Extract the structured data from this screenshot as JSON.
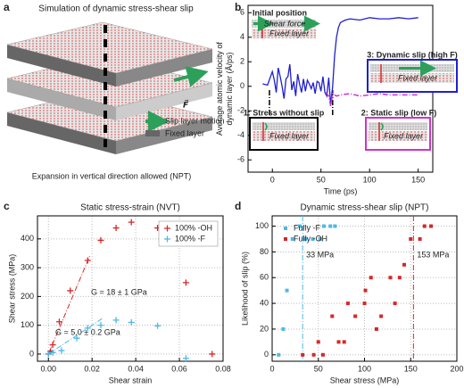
{
  "panel_a": {
    "label": "a",
    "title": "Simulation of dynamic stress-shear slip",
    "force": "F⃗",
    "legend": [
      "Slip layer motion",
      "Fixed layer"
    ],
    "caption": "Expansion in vertical direction allowed (NPT)"
  },
  "chart_data": [
    {
      "type": "line",
      "panel_label": "b",
      "xlabel": "Time (ps)",
      "ylabel": [
        "Average atomic velocity of",
        "dynamic layer (Å/ps)"
      ],
      "xlim": [
        -25,
        165
      ],
      "xticks": [
        0,
        50,
        100,
        150
      ],
      "ylim": [
        -7,
        6.6
      ],
      "yticks": [
        -6,
        -4,
        -2,
        0,
        2,
        4,
        6
      ],
      "grid": false,
      "series": [
        {
          "color": "#1f1fd0",
          "style": "solid",
          "x": [
            -10,
            -5,
            0,
            2,
            4,
            6,
            8,
            10,
            12,
            14,
            16,
            18,
            20,
            22,
            24,
            26,
            28,
            30,
            32,
            34,
            36,
            38,
            40,
            42,
            44,
            46,
            48,
            50,
            52,
            54,
            56,
            58,
            60,
            62,
            64,
            66,
            68,
            70,
            75,
            80,
            90,
            100,
            110,
            120,
            130,
            140,
            150
          ],
          "values": [
            0.2,
            0.1,
            1.2,
            0.5,
            -0.5,
            1.5,
            0.8,
            0,
            -1,
            0.6,
            0.8,
            1.8,
            -0.3,
            0.4,
            -0.8,
            1.0,
            0.2,
            -0.5,
            0.6,
            -0.4,
            0.5,
            0.2,
            -0.2,
            0.3,
            -0.6,
            0.4,
            0.3,
            -0.4,
            0.8,
            -0.5,
            -0.8,
            0.7,
            -1.5,
            0,
            2.5,
            4.0,
            4.8,
            5.2,
            5.4,
            5.5,
            5.4,
            5.6,
            5.5,
            5.5,
            5.6,
            5.5,
            5.6
          ]
        },
        {
          "color": "#cc33cc",
          "style": "dashdot",
          "x": [
            55,
            58,
            60,
            62,
            64,
            66,
            70,
            80,
            90,
            100,
            110,
            120,
            130,
            140,
            150
          ],
          "values": [
            -0.5,
            -0.8,
            -1.6,
            -0.6,
            -0.7,
            -0.8,
            -0.7,
            -0.6,
            -0.8,
            -0.7,
            -0.6,
            -0.7,
            -0.7,
            -0.7,
            -0.7
          ]
        }
      ],
      "vlines": [
        {
          "value": -3,
          "color": "#000000"
        },
        {
          "value": 62,
          "color": "#000000"
        }
      ],
      "insets": {
        "initial": "Initial position",
        "force": "Shear force",
        "fixed": "Fixed layer",
        "stage1": "1: Stress without slip",
        "stage2": "2: Static slip (low F)",
        "stage3": "3: Dynamic slip (high F)"
      }
    },
    {
      "type": "scatter",
      "panel_label": "c",
      "title": "Static stress-strain (NVT)",
      "xlabel": "Shear strain",
      "ylabel": [
        "Shear stress (MPa)"
      ],
      "xlim": [
        -0.005,
        0.08
      ],
      "xticks": [
        {
          "value": 0,
          "label": "0.00"
        },
        {
          "value": 0.02,
          "label": "0.02"
        },
        {
          "value": 0.04,
          "label": "0.04"
        },
        {
          "value": 0.06,
          "label": "0.06"
        },
        {
          "value": 0.08,
          "label": "0.08"
        }
      ],
      "ylim": [
        -25,
        480
      ],
      "yticks": [
        0,
        100,
        200,
        300,
        400
      ],
      "grid": true,
      "legend": "upper right",
      "series": [
        {
          "name": "100% -OH",
          "color": "#d62728",
          "marker": "plus",
          "x": [
            0,
            0.001,
            0.002,
            0.005,
            0.01,
            0.018,
            0.024,
            0.031,
            0.038,
            0.05,
            0.063,
            0.075
          ],
          "values": [
            0,
            10,
            32,
            112,
            220,
            325,
            395,
            438,
            458,
            438,
            248,
            0
          ]
        },
        {
          "name": "100% -F",
          "color": "#4db8e8",
          "marker": "plus",
          "x": [
            0,
            0.002,
            0.006,
            0.013,
            0.018,
            0.024,
            0.031,
            0.038,
            0.05,
            0.063
          ],
          "values": [
            0,
            5,
            12,
            55,
            90,
            100,
            118,
            110,
            98,
            -15
          ]
        }
      ],
      "fits": [
        {
          "color": "#d62728",
          "x": [
            0,
            0.019
          ],
          "values": [
            0,
            342
          ]
        },
        {
          "color": "#4db8e8",
          "x": [
            0,
            0.025
          ],
          "values": [
            0,
            125
          ]
        }
      ],
      "annotations": [
        {
          "text": "G = 18 ± 1 GPa",
          "color": "#d62728"
        },
        {
          "text": "G = 5.0 ± 0.2 GPa",
          "color": "#4db8e8"
        }
      ]
    },
    {
      "type": "scatter",
      "panel_label": "d",
      "title": "Dynamic stress-shear slip (NPT)",
      "xlabel": "Shear stress (MPa)",
      "ylabel": [
        "Likelihood of slip (%)"
      ],
      "xlim": [
        0,
        200
      ],
      "xticks": [
        0,
        50,
        100,
        150,
        200
      ],
      "ylim": [
        -5,
        108
      ],
      "yticks": [
        0,
        20,
        40,
        60,
        80,
        100
      ],
      "grid": true,
      "legend": "upper left",
      "series": [
        {
          "name": "Fully -F",
          "color": "#4db8e8",
          "marker": "square",
          "x": [
            7,
            12,
            16,
            22,
            30,
            36,
            44,
            52,
            56,
            63,
            68
          ],
          "values": [
            0,
            20,
            50,
            90,
            100,
            90,
            90,
            90,
            100,
            100,
            100
          ]
        },
        {
          "name": "Fully -OH",
          "color": "#d62728",
          "marker": "square",
          "x": [
            33,
            45,
            50,
            55,
            65,
            72,
            78,
            82,
            90,
            100,
            101,
            107,
            113,
            118,
            128,
            133,
            138,
            143,
            150,
            160,
            165,
            172
          ],
          "values": [
            0,
            0,
            10,
            0,
            30,
            10,
            10,
            40,
            30,
            40,
            50,
            60,
            20,
            30,
            60,
            40,
            60,
            70,
            90,
            90,
            100,
            100
          ]
        }
      ],
      "vlines": [
        {
          "value": 33,
          "label": "33 MPa",
          "color": "#4db8e8"
        },
        {
          "value": 153,
          "label": "153 MPa",
          "color": "#d62728"
        }
      ]
    }
  ]
}
